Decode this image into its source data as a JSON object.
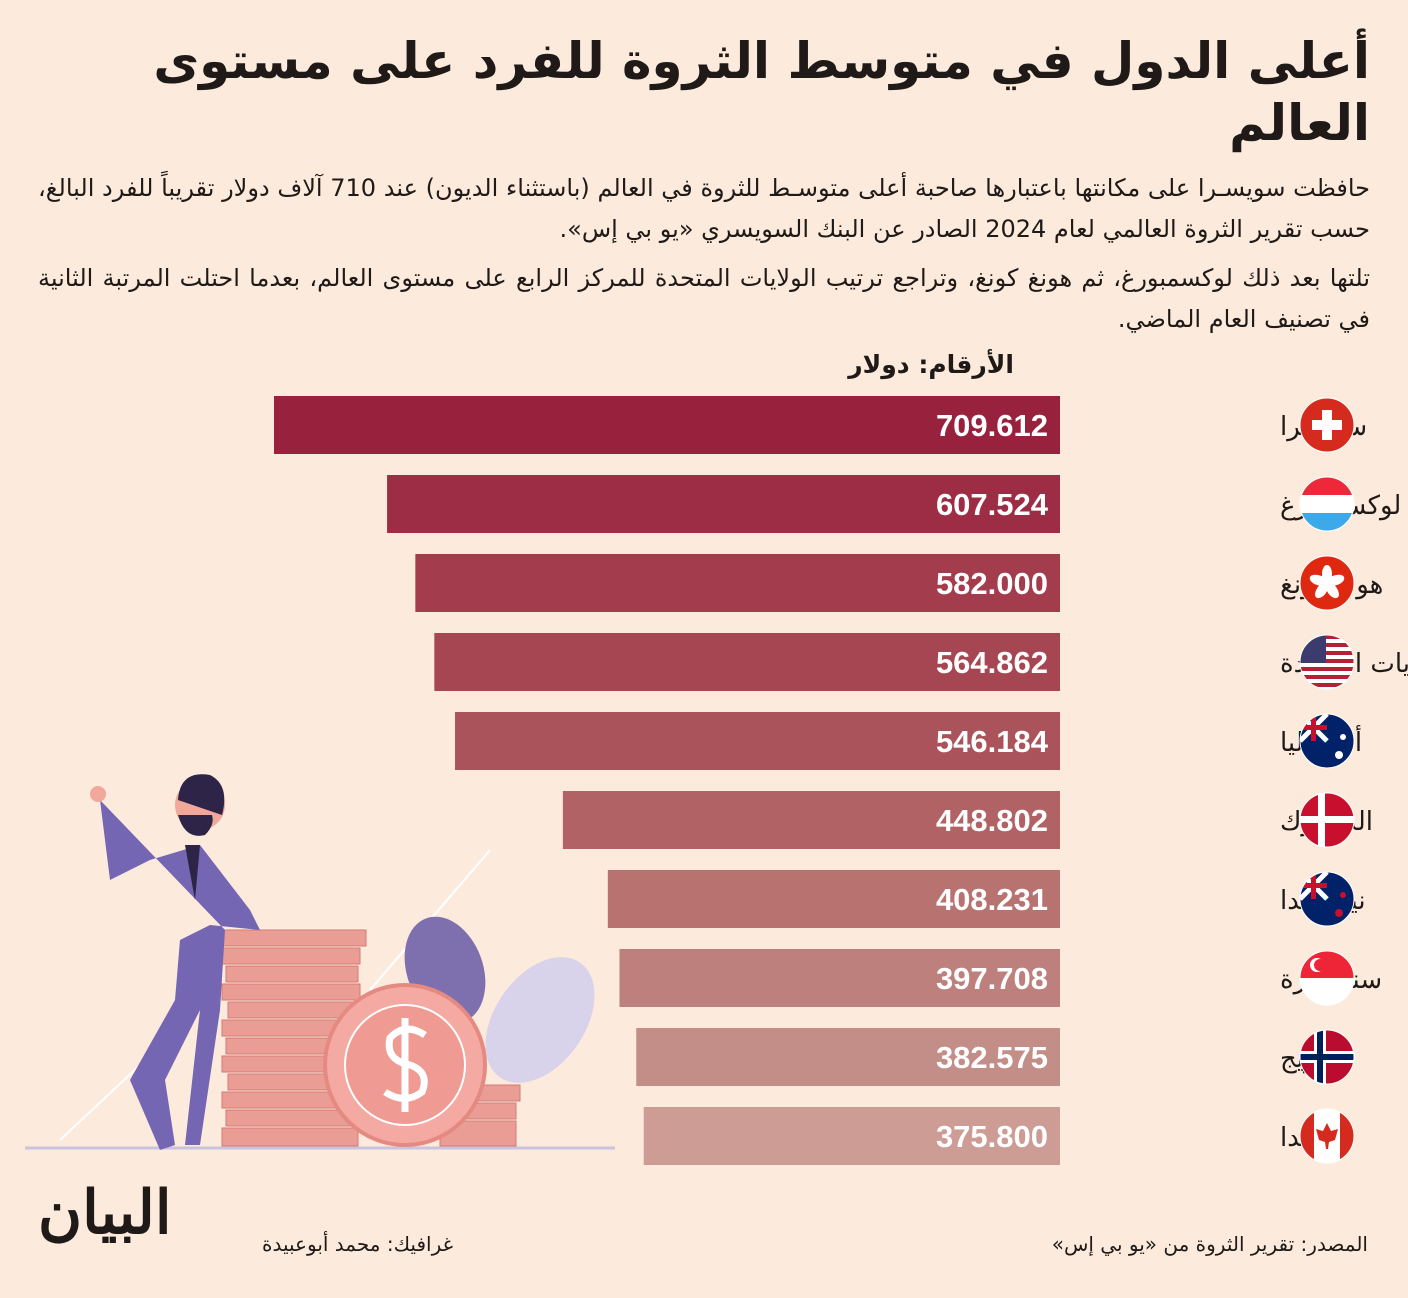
{
  "title": "أعلى الدول في متوسط الثروة للفرد على مستوى العالم",
  "paragraphs": [
    "حافظت سويسـرا على مكانتها باعتبارها صاحبة أعلى متوسـط للثروة في العالم (باستثناء الديون) عند 710 آلاف دولار تقريباً للفرد البالغ، حسب تقرير الثروة العالمي لعام 2024 الصادر عن البنك السويسري «يو بي إس».",
    "تلتها بعد ذلك لوكسمبورغ، ثم هونغ كونغ، وتراجع ترتيب الولايات المتحدة للمركز الرابع على مستوى العالم، بعدما احتلت المرتبة الثانية في تصنيف العام الماضي."
  ],
  "unit_label": "الأرقام: دولار",
  "source": "المصدر: تقرير الثروة من «يو بي إس»",
  "credit": "غرافيك: محمد أبوعبيدة",
  "logo": "البيان",
  "chart_data": {
    "type": "bar",
    "orientation": "horizontal",
    "title": "أعلى الدول في متوسط الثروة للفرد على مستوى العالم",
    "ylabel": "الأرقام: دولار",
    "categories": [
      "سويسرا",
      "لوكسمبورغ",
      "هونغ كونغ",
      "الولايات المتحدة",
      "أستراليا",
      "الدنمارك",
      "نيوزيلندا",
      "سنغافورة",
      "النرويج",
      "كندا"
    ],
    "values": [
      709.612,
      607.524,
      582.0,
      564.862,
      546.184,
      448.802,
      408.231,
      397.708,
      382.575,
      375.8
    ],
    "value_labels": [
      "709.612",
      "607.524",
      "582.000",
      "564.862",
      "546.184",
      "448.802",
      "408.231",
      "397.708",
      "382.575",
      "375.800"
    ],
    "flags": [
      "switzerland",
      "luxembourg",
      "hong-kong",
      "usa",
      "australia",
      "denmark",
      "new-zealand",
      "singapore",
      "norway",
      "canada"
    ],
    "colors": [
      "#98223e",
      "#9c2d45",
      "#a33c4d",
      "#a74653",
      "#ab535b",
      "#b16265",
      "#b87371",
      "#bd807c",
      "#c48e88",
      "#cd9c95"
    ],
    "xlim": [
      0,
      709.612
    ]
  }
}
